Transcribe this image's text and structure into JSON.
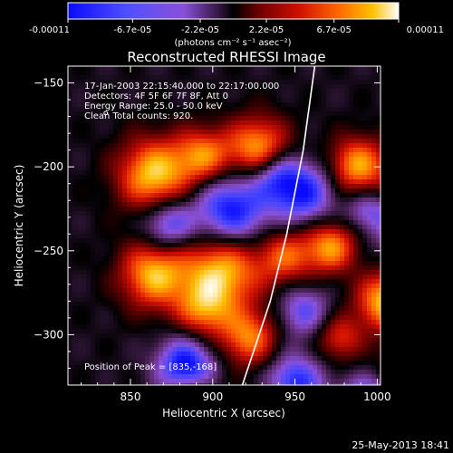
{
  "colorbar": {
    "tick_labels": [
      "-0.00011",
      "-6.7e-05",
      "-2.2e-05",
      "2.2e-05",
      "6.7e-05",
      "0.00011"
    ],
    "tick_values": [
      -0.00011,
      -6.7e-05,
      -2.2e-05,
      2.2e-05,
      6.7e-05,
      0.00011
    ],
    "range": [
      -0.00011,
      0.00011
    ],
    "units": "(photons cm⁻² s⁻¹ asec⁻²)"
  },
  "chart_data": {
    "type": "heatmap",
    "title": "Reconstructed RHESSI Image",
    "xlabel": "Heliocentric X (arcsec)",
    "ylabel": "Heliocentric Y (arcsec)",
    "xlim": [
      812,
      1002
    ],
    "ylim": [
      -330,
      -140
    ],
    "xticks": [
      850,
      900,
      950,
      1000
    ],
    "yticks": [
      -300,
      -250,
      -200,
      -150
    ],
    "xtick_labels": [
      "850",
      "900",
      "950",
      "1000"
    ],
    "ytick_labels": [
      "−300",
      "−250",
      "−200",
      "−150"
    ],
    "annotations": [
      "17-Jan-2003 22:15:40.000 to 22:17:00.000",
      "Detectors: 4F 5F 6F 7F 8F, Att 0",
      "Energy Range: 25.0 - 50.0 keV",
      "Clean     Total counts: 920."
    ],
    "peak_label": "Position of Peak = [835,-168]",
    "peak": [
      835,
      -168
    ],
    "limb": [
      [
        962,
        -140
      ],
      [
        955,
        -190
      ],
      [
        945,
        -240
      ],
      [
        935,
        -280
      ],
      [
        918,
        -330
      ]
    ],
    "colormap": [
      "#0a0aff",
      "#4444ff",
      "#8a50d8",
      "#5a2a6a",
      "#000000",
      "#6a0000",
      "#d01000",
      "#ff6000",
      "#ffc000",
      "#ffffff"
    ]
  },
  "footer": {
    "timestamp": "25-May-2013 18:41"
  }
}
